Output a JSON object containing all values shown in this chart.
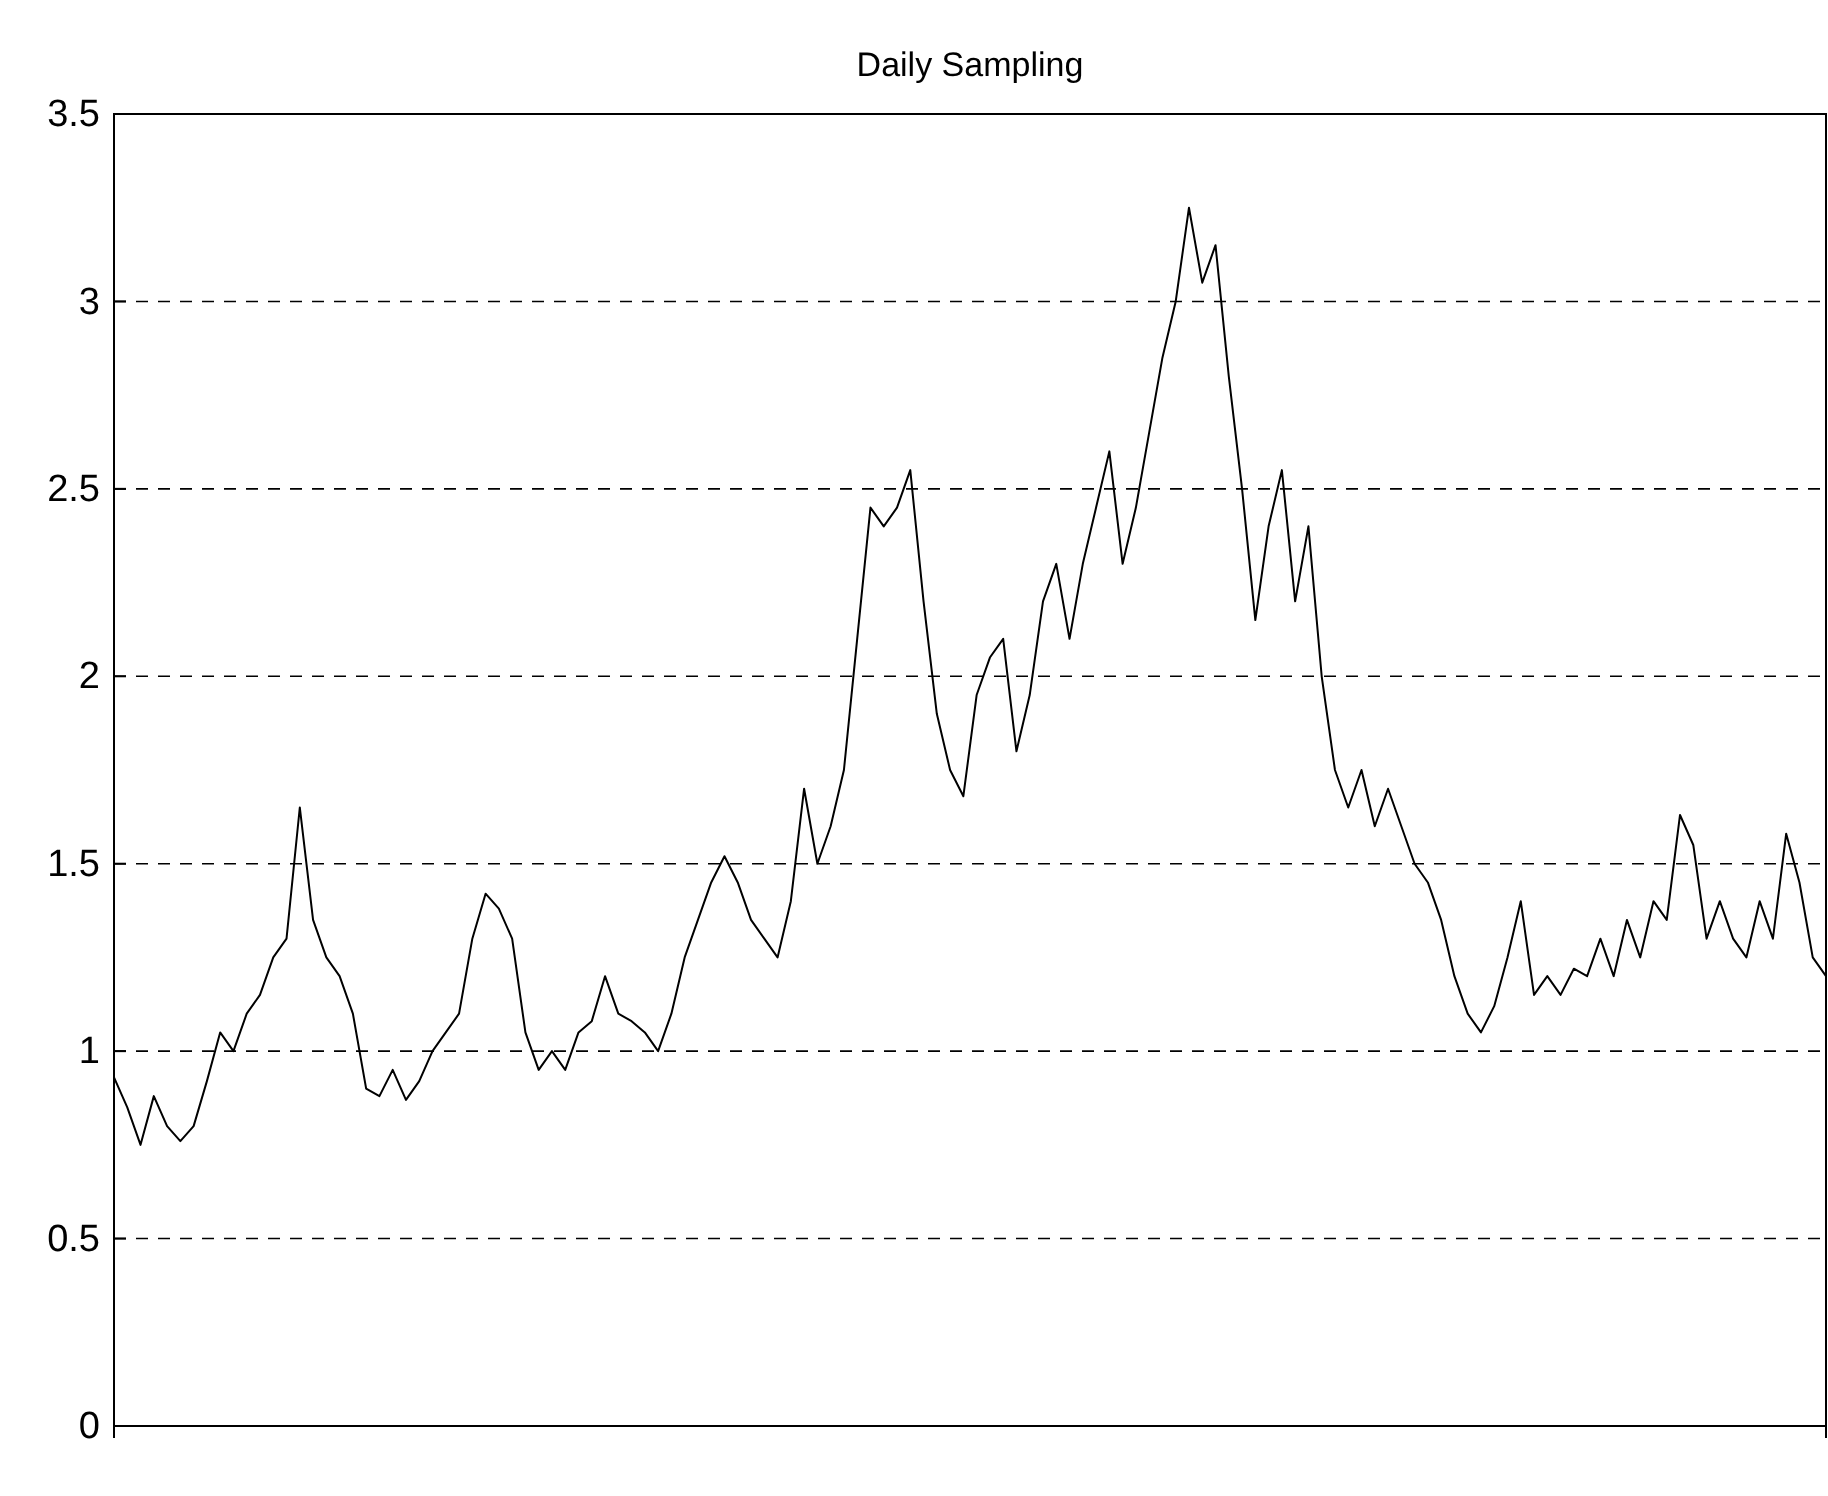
{
  "chart_data": {
    "type": "line",
    "title": "Daily Sampling",
    "categories": [
      null,
      null,
      null,
      null,
      null,
      null,
      null,
      null,
      null,
      null,
      null,
      null,
      null,
      null,
      null,
      null,
      null,
      null,
      null,
      null,
      null,
      null,
      null,
      null,
      null,
      null,
      null,
      null,
      null,
      null,
      null,
      null,
      null,
      null,
      null,
      null,
      null,
      null,
      null,
      null,
      null,
      null,
      null,
      null,
      null,
      null,
      null,
      null,
      null,
      null,
      null,
      null,
      null,
      null,
      null,
      null,
      null,
      null,
      null,
      null,
      null,
      null,
      null,
      null,
      null,
      null,
      null,
      null,
      null,
      null,
      null,
      null,
      null,
      null,
      null,
      null,
      null,
      null,
      null,
      null,
      null,
      null,
      null,
      null,
      null,
      null,
      null,
      null,
      null,
      null,
      null,
      null,
      null,
      null,
      null,
      null,
      null,
      null,
      null,
      null,
      null,
      null,
      null,
      null,
      null,
      null,
      null,
      null,
      null,
      null,
      null,
      null,
      null,
      null,
      null,
      null,
      null,
      null,
      null,
      null,
      null,
      null,
      null,
      null,
      null,
      null,
      null,
      null,
      null,
      null
    ],
    "series": [
      {
        "color": "#000000",
        "values": [
          0.93,
          0.85,
          0.75,
          0.88,
          0.8,
          0.76,
          0.8,
          0.92,
          1.05,
          1.0,
          1.1,
          1.15,
          1.25,
          1.3,
          1.65,
          1.35,
          1.25,
          1.2,
          1.1,
          0.9,
          0.88,
          0.95,
          0.87,
          0.92,
          1.0,
          1.05,
          1.1,
          1.3,
          1.42,
          1.38,
          1.3,
          1.05,
          0.95,
          1.0,
          0.95,
          1.05,
          1.08,
          1.2,
          1.1,
          1.08,
          1.05,
          1.0,
          1.1,
          1.25,
          1.35,
          1.45,
          1.52,
          1.45,
          1.35,
          1.3,
          1.25,
          1.4,
          1.7,
          1.5,
          1.6,
          1.75,
          2.1,
          2.45,
          2.4,
          2.45,
          2.55,
          2.2,
          1.9,
          1.75,
          1.68,
          1.95,
          2.05,
          2.1,
          1.8,
          1.95,
          2.2,
          2.3,
          2.1,
          2.3,
          2.45,
          2.6,
          2.3,
          2.45,
          2.65,
          2.85,
          3.0,
          3.25,
          3.05,
          3.15,
          2.8,
          2.5,
          2.15,
          2.4,
          2.55,
          2.2,
          2.4,
          2.0,
          1.75,
          1.65,
          1.75,
          1.6,
          1.7,
          1.6,
          1.5,
          1.45,
          1.35,
          1.2,
          1.1,
          1.05,
          1.12,
          1.25,
          1.4,
          1.15,
          1.2,
          1.15,
          1.22,
          1.2,
          1.3,
          1.2,
          1.35,
          1.25,
          1.4,
          1.35,
          1.63,
          1.55,
          1.3,
          1.4,
          1.3,
          1.25,
          1.4,
          1.3,
          1.58,
          1.45,
          1.25,
          1.2
        ]
      }
    ],
    "ylim": [
      0,
      3.5
    ],
    "yticks": [
      0,
      0.5,
      1,
      1.5,
      2,
      2.5,
      3,
      3.5
    ],
    "grid": "y",
    "tick_labels": "y",
    "marker": "none",
    "line_style": "solid"
  }
}
